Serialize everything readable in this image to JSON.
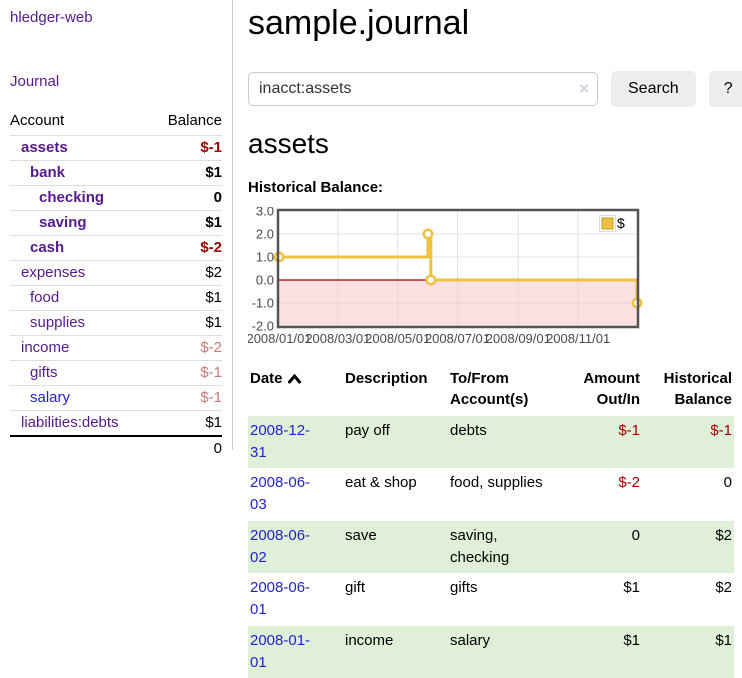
{
  "sidebar": {
    "app_title": "hledger-web",
    "nav": {
      "journal_label": "Journal"
    },
    "accounts_table": {
      "headers": {
        "account": "Account",
        "balance": "Balance"
      },
      "rows": [
        {
          "name": "assets",
          "depth": 1,
          "bold": true,
          "name_style": "purple",
          "balance": "$-1",
          "balance_style": "neg-strong"
        },
        {
          "name": "bank",
          "depth": 2,
          "bold": true,
          "name_style": "purple",
          "balance": "$1",
          "balance_style": "pos"
        },
        {
          "name": "checking",
          "depth": 3,
          "bold": true,
          "name_style": "purple",
          "balance": "0",
          "balance_style": "pos"
        },
        {
          "name": "saving",
          "depth": 3,
          "bold": true,
          "name_style": "purple",
          "balance": "$1",
          "balance_style": "pos"
        },
        {
          "name": "cash",
          "depth": 2,
          "bold": true,
          "name_style": "purple",
          "balance": "$-2",
          "balance_style": "neg-strong"
        },
        {
          "name": "expenses",
          "depth": 1,
          "bold": false,
          "name_style": "purple",
          "balance": "$2",
          "balance_style": "pos"
        },
        {
          "name": "food",
          "depth": 2,
          "bold": false,
          "name_style": "purple",
          "balance": "$1",
          "balance_style": "pos"
        },
        {
          "name": "supplies",
          "depth": 2,
          "bold": false,
          "name_style": "purple",
          "balance": "$1",
          "balance_style": "pos"
        },
        {
          "name": "income",
          "depth": 1,
          "bold": false,
          "name_style": "purple",
          "balance": "$-2",
          "balance_style": "neg-soft"
        },
        {
          "name": "gifts",
          "depth": 2,
          "bold": false,
          "name_style": "purple",
          "balance": "$-1",
          "balance_style": "neg-soft"
        },
        {
          "name": "salary",
          "depth": 2,
          "bold": false,
          "name_style": "blue",
          "balance": "$-1",
          "balance_style": "neg-soft"
        },
        {
          "name": "liabilities:debts",
          "depth": 1,
          "bold": false,
          "name_style": "purple",
          "balance": "$1",
          "balance_style": "pos"
        }
      ],
      "total": "0"
    }
  },
  "header": {
    "title": "sample.journal"
  },
  "search": {
    "query": "inacct:assets",
    "clear_icon": "×",
    "search_label": "Search",
    "help_label": "?"
  },
  "account_page": {
    "heading": "assets",
    "chart_label": "Historical Balance:"
  },
  "chart_data": {
    "type": "line",
    "step": true,
    "title": "Historical Balance",
    "x_range": [
      "2008-01-01",
      "2008-12-31"
    ],
    "ylim": [
      -2,
      3
    ],
    "y_ticks": [
      {
        "v": 3,
        "label": "3.0"
      },
      {
        "v": 2,
        "label": "2.0"
      },
      {
        "v": 1,
        "label": "1.0"
      },
      {
        "v": 0,
        "label": "0.0"
      },
      {
        "v": -1,
        "label": "-1.0"
      },
      {
        "v": -2,
        "label": "-2.0"
      }
    ],
    "x_ticks": [
      {
        "t": 0.0,
        "label": "2008/01/01"
      },
      {
        "t": 0.1644,
        "label": "2008/03/01"
      },
      {
        "t": 0.3315,
        "label": "2008/05/01"
      },
      {
        "t": 0.4986,
        "label": "2008/07/01"
      },
      {
        "t": 0.6685,
        "label": "2008/09/01"
      },
      {
        "t": 0.8356,
        "label": "2008/11/01"
      }
    ],
    "series": [
      {
        "name": "$",
        "color": "#edc240",
        "points": [
          {
            "date": "2008-01-01",
            "t": 0.0,
            "value": 1
          },
          {
            "date": "2008-06-01",
            "t": 0.416,
            "value": 2
          },
          {
            "date": "2008-06-03",
            "t": 0.424,
            "value": 0
          },
          {
            "date": "2008-12-31",
            "t": 1.0,
            "value": -1
          }
        ]
      }
    ],
    "legend_position": "top-right",
    "grid": true,
    "grid_color": "#e3e3e3",
    "border_color": "#545454",
    "zero_line_color": "#9e0000",
    "negative_region_fill": "#f6c6c6",
    "tick_label_color": "#4a4a4a"
  },
  "register": {
    "headers": {
      "date": "Date",
      "description": "Description",
      "accounts": "To/From Account(s)",
      "amount": "Amount Out/In",
      "balance": "Historical Balance"
    },
    "sort": {
      "column": "date",
      "direction": "ascending"
    },
    "rows": [
      {
        "date": "2008-12-31",
        "description": "pay off",
        "accounts": "debts",
        "amount": "$-1",
        "amount_style": "neg-strong",
        "balance": "$-1",
        "balance_style": "neg-strong"
      },
      {
        "date": "2008-06-03",
        "description": "eat & shop",
        "accounts": "food, supplies",
        "amount": "$-2",
        "amount_style": "neg-strong",
        "balance": "0",
        "balance_style": "pos"
      },
      {
        "date": "2008-06-02",
        "description": "save",
        "accounts": "saving, checking",
        "amount": "0",
        "amount_style": "pos",
        "balance": "$2",
        "balance_style": "pos"
      },
      {
        "date": "2008-06-01",
        "description": "gift",
        "accounts": "gifts",
        "amount": "$1",
        "amount_style": "pos",
        "balance": "$2",
        "balance_style": "pos"
      },
      {
        "date": "2008-01-01",
        "description": "income",
        "accounts": "salary",
        "amount": "$1",
        "amount_style": "pos",
        "balance": "$1",
        "balance_style": "pos"
      }
    ],
    "stripe_color": "#e0efd8"
  },
  "colors": {
    "visited_link_purple": "#551A8B",
    "link_blue": "#2222cc",
    "negative_strong_red": "#a00000",
    "negative_soft_red": "#ca7a7a",
    "row_stripe_green": "#e0efd8",
    "series_gold": "#edc240",
    "button_gray": "#ededed"
  }
}
